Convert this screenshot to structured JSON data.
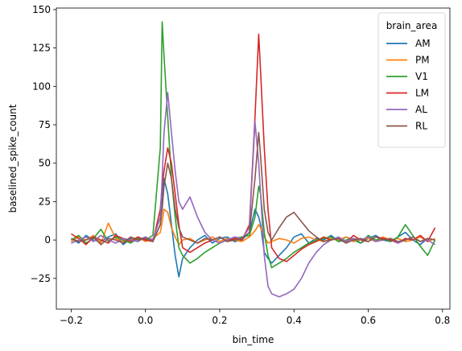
{
  "chart_data": {
    "type": "line",
    "xlabel": "bin_time",
    "ylabel": "baselined_spike_count",
    "xlim": [
      -0.24,
      0.82
    ],
    "ylim": [
      -45,
      151
    ],
    "xticks": [
      -0.2,
      0.0,
      0.2,
      0.4,
      0.6,
      0.8
    ],
    "xtick_labels": [
      "−0.2",
      "0.0",
      "0.2",
      "0.4",
      "0.6",
      "0.8"
    ],
    "yticks": [
      -25,
      0,
      25,
      50,
      75,
      100,
      125,
      150
    ],
    "ytick_labels": [
      "−25",
      "0",
      "25",
      "50",
      "75",
      "100",
      "125",
      "150"
    ],
    "grid": false,
    "legend": {
      "title": "brain_area",
      "placement": "top-right",
      "entries": [
        "AM",
        "PM",
        "V1",
        "LM",
        "AL",
        "RL"
      ]
    },
    "x": [
      -0.2,
      -0.18,
      -0.16,
      -0.14,
      -0.12,
      -0.1,
      -0.08,
      -0.06,
      -0.04,
      -0.02,
      0.0,
      0.02,
      0.04,
      0.045,
      0.05,
      0.06,
      0.07,
      0.08,
      0.09,
      0.1,
      0.12,
      0.14,
      0.16,
      0.18,
      0.2,
      0.22,
      0.24,
      0.26,
      0.28,
      0.295,
      0.305,
      0.31,
      0.32,
      0.33,
      0.34,
      0.36,
      0.38,
      0.4,
      0.42,
      0.44,
      0.46,
      0.48,
      0.5,
      0.52,
      0.54,
      0.56,
      0.58,
      0.6,
      0.62,
      0.64,
      0.66,
      0.68,
      0.7,
      0.72,
      0.74,
      0.76,
      0.78
    ],
    "series": [
      {
        "name": "AM",
        "color": "#1f77b4",
        "values": [
          1,
          -2,
          3,
          0,
          -1,
          2,
          4,
          -3,
          1,
          0,
          2,
          -1,
          10,
          25,
          40,
          30,
          10,
          -10,
          -24,
          -12,
          -5,
          0,
          3,
          -2,
          1,
          2,
          -1,
          0,
          5,
          20,
          15,
          10,
          -8,
          -12,
          -15,
          -10,
          -5,
          2,
          4,
          -2,
          1,
          0,
          3,
          -1,
          2,
          0,
          -2,
          1,
          3,
          0,
          -1,
          2,
          5,
          0,
          -3,
          1,
          0
        ]
      },
      {
        "name": "PM",
        "color": "#ff7f0e",
        "values": [
          -1,
          2,
          0,
          3,
          -2,
          11,
          1,
          -1,
          0,
          2,
          -1,
          1,
          5,
          12,
          20,
          18,
          8,
          2,
          -3,
          0,
          1,
          -2,
          0,
          2,
          -1,
          1,
          0,
          -1,
          2,
          6,
          10,
          8,
          2,
          -2,
          -1,
          1,
          0,
          -2,
          1,
          2,
          0,
          -1,
          1,
          0,
          2,
          -1,
          0,
          1,
          -1,
          2,
          0,
          1,
          -1,
          0,
          2,
          -1,
          1
        ]
      },
      {
        "name": "V1",
        "color": "#2ca02c",
        "values": [
          0,
          3,
          -2,
          1,
          7,
          -1,
          2,
          0,
          -2,
          1,
          0,
          3,
          60,
          142,
          120,
          80,
          40,
          15,
          -5,
          -10,
          -15,
          -12,
          -8,
          -5,
          -2,
          0,
          1,
          2,
          3,
          15,
          35,
          30,
          5,
          -10,
          -18,
          -15,
          -12,
          -8,
          -5,
          -2,
          0,
          1,
          2,
          -1,
          0,
          1,
          -2,
          3,
          0,
          1,
          -1,
          2,
          10,
          3,
          -4,
          -10,
          0
        ]
      },
      {
        "name": "LM",
        "color": "#d62728",
        "values": [
          4,
          1,
          -3,
          2,
          0,
          -2,
          3,
          1,
          -1,
          2,
          0,
          -1,
          20,
          35,
          45,
          60,
          50,
          30,
          10,
          -5,
          -8,
          -5,
          -2,
          0,
          2,
          -1,
          1,
          0,
          10,
          80,
          134,
          110,
          60,
          20,
          -5,
          -12,
          -14,
          -10,
          -6,
          -3,
          -1,
          2,
          0,
          1,
          -2,
          3,
          0,
          -1,
          2,
          1,
          0,
          -2,
          1,
          0,
          3,
          -1,
          8
        ]
      },
      {
        "name": "AL",
        "color": "#9467bd",
        "values": [
          -2,
          0,
          2,
          -1,
          3,
          0,
          -2,
          1,
          0,
          -1,
          2,
          0,
          15,
          40,
          70,
          96,
          70,
          45,
          25,
          20,
          28,
          15,
          5,
          0,
          -2,
          0,
          2,
          1,
          8,
          77,
          50,
          30,
          -10,
          -30,
          -35,
          -37,
          -35,
          -32,
          -25,
          -15,
          -8,
          -3,
          0,
          2,
          -1,
          1,
          0,
          2,
          -1,
          0,
          1,
          -2,
          0,
          2,
          -1,
          0,
          -3
        ]
      },
      {
        "name": "RL",
        "color": "#8c564b",
        "values": [
          1,
          -1,
          0,
          2,
          -3,
          1,
          0,
          -2,
          2,
          0,
          1,
          -1,
          10,
          20,
          35,
          50,
          40,
          20,
          8,
          2,
          0,
          -2,
          1,
          0,
          2,
          -1,
          0,
          1,
          5,
          40,
          70,
          55,
          20,
          5,
          0,
          8,
          15,
          18,
          12,
          6,
          2,
          -1,
          0,
          1,
          -2,
          0,
          1,
          -1,
          2,
          0,
          1,
          -1,
          0,
          2,
          -1,
          1,
          0
        ]
      }
    ]
  }
}
